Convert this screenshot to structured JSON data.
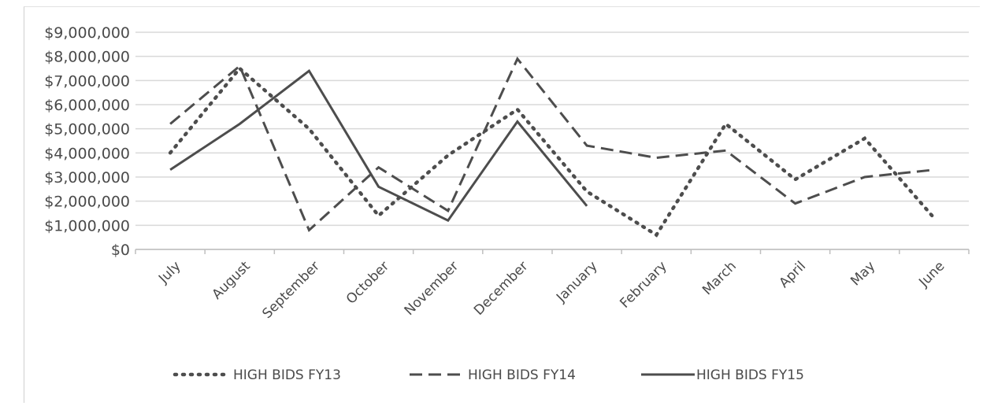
{
  "chart_data": {
    "type": "line",
    "title": "",
    "xlabel": "",
    "ylabel": "",
    "categories": [
      "July",
      "August",
      "September",
      "October",
      "November",
      "December",
      "January",
      "February",
      "March",
      "April",
      "May",
      "June"
    ],
    "ylim": [
      0,
      9000000
    ],
    "yticks": [
      0,
      1000000,
      2000000,
      3000000,
      4000000,
      5000000,
      6000000,
      7000000,
      8000000,
      9000000
    ],
    "ytick_labels": [
      "$0",
      "$1,000,000",
      "$2,000,000",
      "$3,000,000",
      "$4,000,000",
      "$5,000,000",
      "$6,000,000",
      "$7,000,000",
      "$8,000,000",
      "$9,000,000"
    ],
    "grid": true,
    "legend_position": "bottom",
    "series": [
      {
        "name": "HIGH BIDS FY13",
        "style": "dotted",
        "values": [
          4000000,
          7500000,
          5000000,
          1400000,
          3900000,
          5800000,
          2400000,
          600000,
          5200000,
          2900000,
          4600000,
          1300000
        ]
      },
      {
        "name": "HIGH BIDS FY14",
        "style": "dashed",
        "values": [
          5200000,
          7600000,
          800000,
          3400000,
          1600000,
          7900000,
          4300000,
          3800000,
          4100000,
          1900000,
          3000000,
          3300000
        ]
      },
      {
        "name": "HIGH BIDS FY15",
        "style": "solid",
        "values": [
          3300000,
          5200000,
          7400000,
          2600000,
          1200000,
          5300000,
          1800000,
          null,
          null,
          null,
          null,
          null
        ]
      }
    ],
    "line_color": "#4d4d4d",
    "grid_color": "#d9d9d9"
  }
}
